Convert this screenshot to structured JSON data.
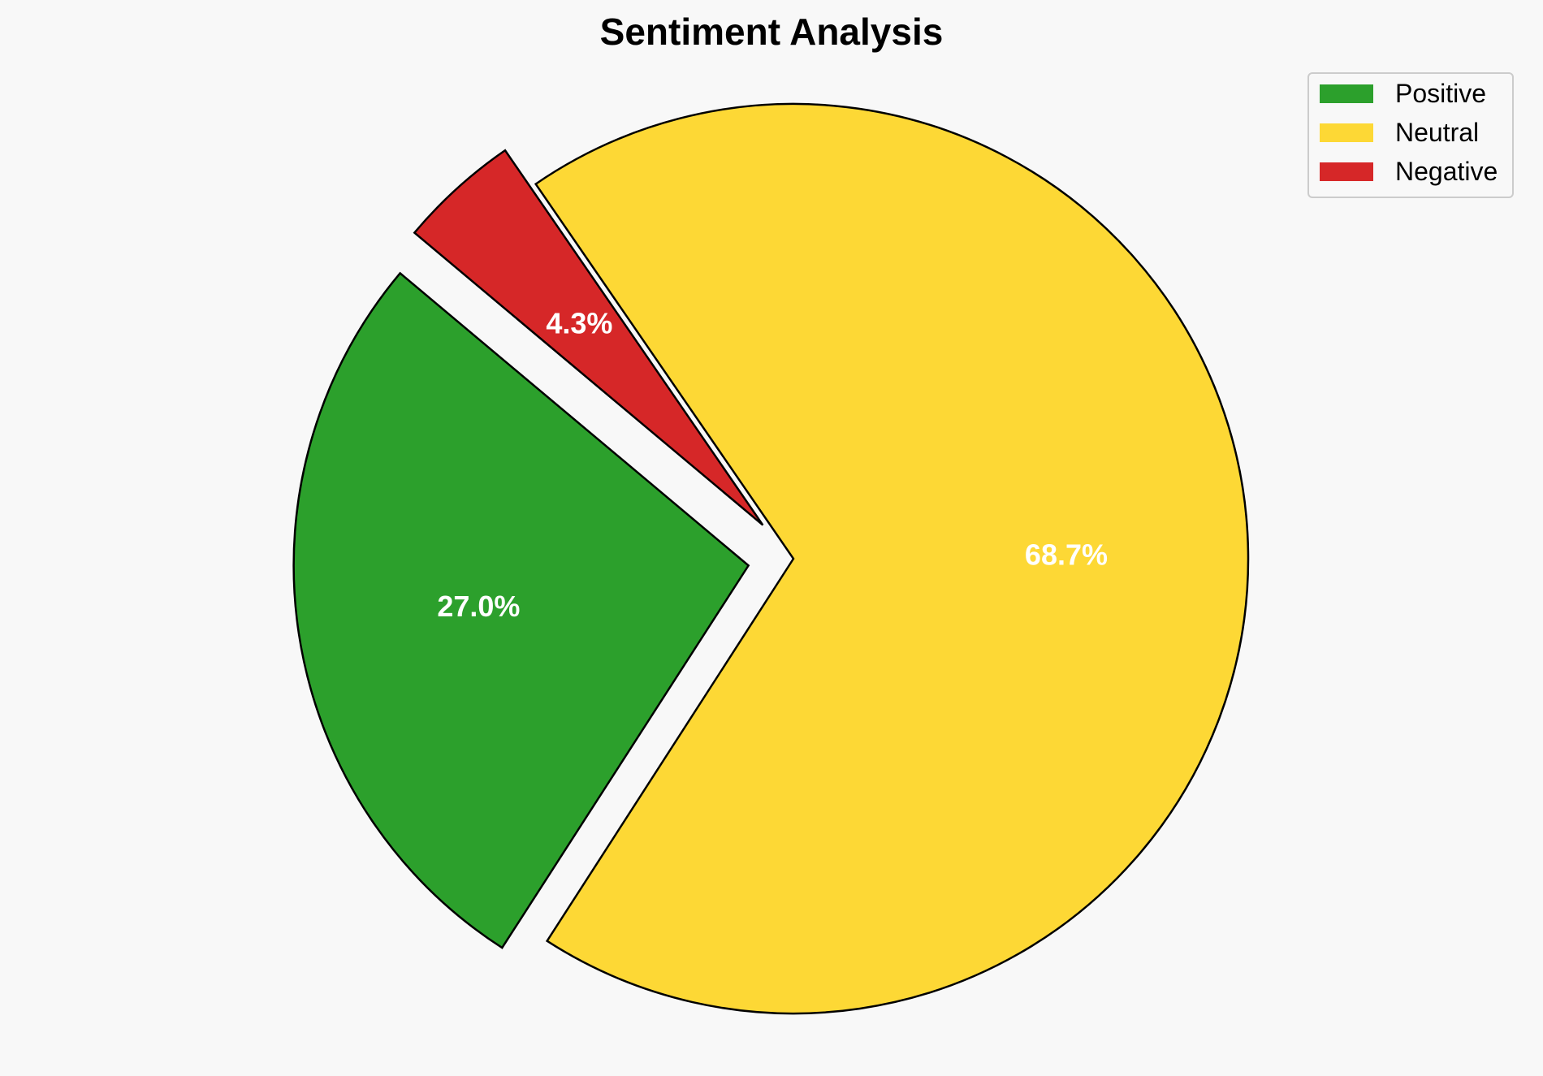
{
  "chart_data": {
    "type": "pie",
    "title": "Sentiment Analysis",
    "categories": [
      "Positive",
      "Neutral",
      "Negative"
    ],
    "values": [
      27.0,
      68.7,
      4.3
    ],
    "labels": [
      "27.0%",
      "68.7%",
      "4.3%"
    ],
    "colors": [
      "#2ca02c",
      "#fdd835",
      "#d62728"
    ],
    "exploded": [
      true,
      false,
      true
    ],
    "start_angle_deg": 140,
    "direction": "counterclockwise",
    "legend": {
      "placement": "top-right",
      "entries": [
        "Positive",
        "Neutral",
        "Negative"
      ]
    }
  }
}
